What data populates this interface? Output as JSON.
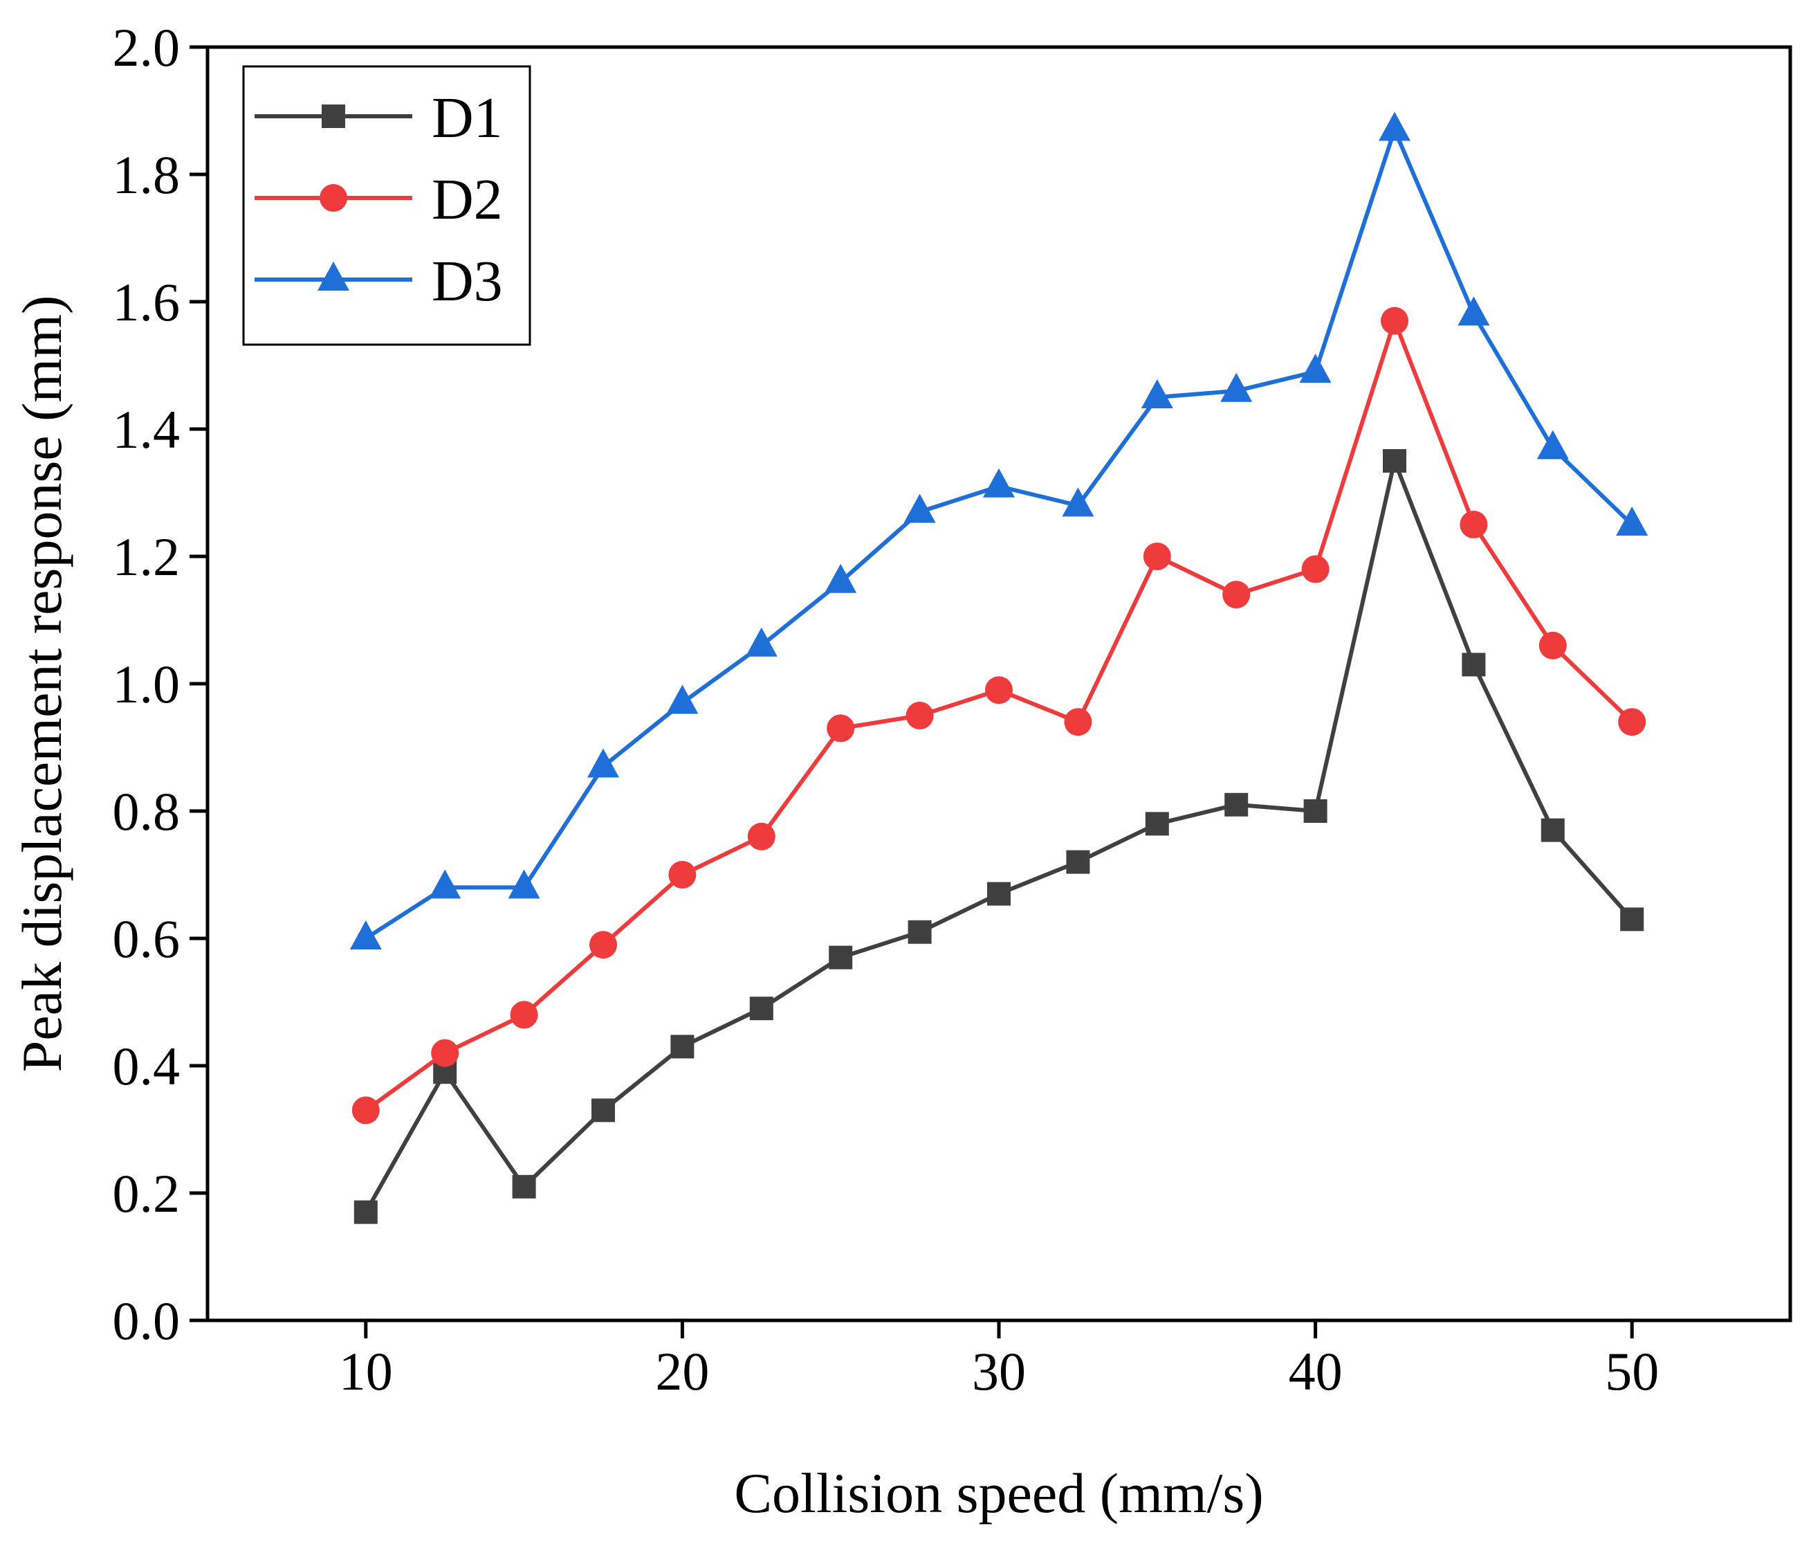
{
  "chart_data": {
    "type": "line",
    "title": "",
    "xlabel": "Collision speed (mm/s)",
    "ylabel": "Peak displacement response (mm)",
    "xlim": [
      5,
      55
    ],
    "ylim": [
      0.0,
      2.0
    ],
    "x_ticks": [
      10,
      20,
      30,
      40,
      50
    ],
    "x_tick_labels": [
      "10",
      "20",
      "30",
      "40",
      "50"
    ],
    "y_ticks": [
      0.0,
      0.2,
      0.4,
      0.6,
      0.8,
      1.0,
      1.2,
      1.4,
      1.6,
      1.8,
      2.0
    ],
    "y_tick_labels": [
      "0.0",
      "0.2",
      "0.4",
      "0.6",
      "0.8",
      "1.0",
      "1.2",
      "1.4",
      "1.6",
      "1.8",
      "2.0"
    ],
    "grid": false,
    "legend_position": "top-left",
    "x": [
      10,
      12.5,
      15,
      17.5,
      20,
      22.5,
      25,
      27.5,
      30,
      32.5,
      35,
      37.5,
      40,
      42.5,
      45,
      47.5,
      50
    ],
    "series": [
      {
        "name": "D1",
        "color": "#404040",
        "marker": "square",
        "values": [
          0.17,
          0.39,
          0.21,
          0.33,
          0.43,
          0.49,
          0.57,
          0.61,
          0.67,
          0.72,
          0.78,
          0.81,
          0.8,
          1.35,
          1.03,
          0.77,
          0.63
        ]
      },
      {
        "name": "D2",
        "color": "#ef3b3b",
        "marker": "circle",
        "values": [
          0.33,
          0.42,
          0.48,
          0.59,
          0.7,
          0.76,
          0.93,
          0.95,
          0.99,
          0.94,
          1.2,
          1.14,
          1.18,
          1.57,
          1.25,
          1.06,
          0.94
        ]
      },
      {
        "name": "D3",
        "color": "#1f6fd8",
        "marker": "triangle",
        "values": [
          0.6,
          0.68,
          0.68,
          0.87,
          0.97,
          1.06,
          1.16,
          1.27,
          1.31,
          1.28,
          1.45,
          1.46,
          1.49,
          1.87,
          1.58,
          1.37,
          1.25
        ]
      }
    ]
  }
}
